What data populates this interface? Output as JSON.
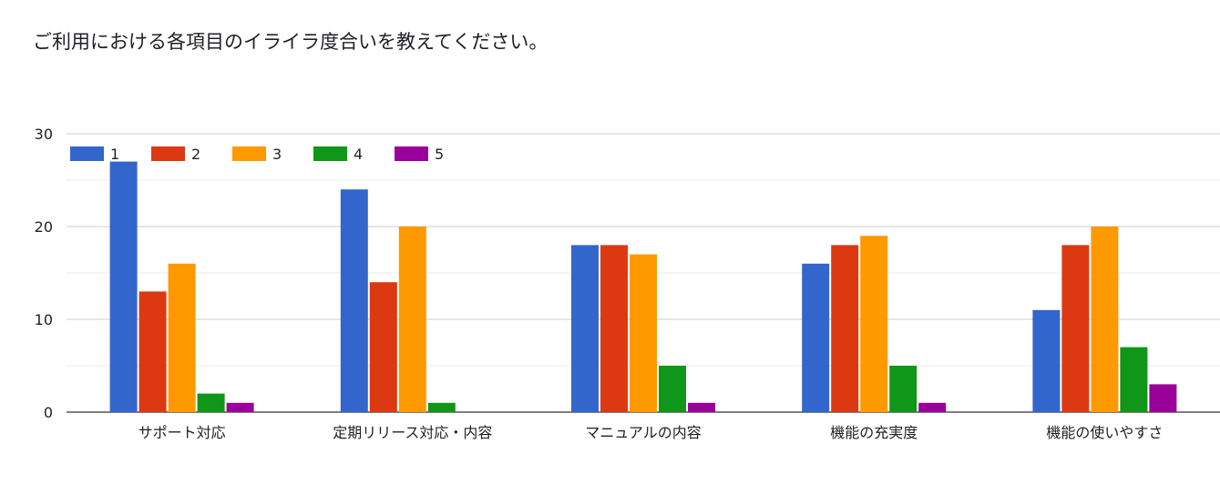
{
  "chart_data": {
    "type": "bar",
    "title": "ご利用における各項目のイライラ度合いを教えてください。",
    "xlabel": "",
    "ylabel": "",
    "ylim": [
      0,
      30
    ],
    "yticks": [
      0,
      10,
      20,
      30
    ],
    "grid": true,
    "legend": "top-left",
    "categories": [
      "サポート対応",
      "定期リリース対応・内容",
      "マニュアルの内容",
      "機能の充実度",
      "機能の使いやすさ"
    ],
    "series": [
      {
        "name": "1",
        "color": "#3366cc",
        "values": [
          27,
          24,
          18,
          16,
          11
        ]
      },
      {
        "name": "2",
        "color": "#dc3912",
        "values": [
          13,
          14,
          18,
          18,
          18
        ]
      },
      {
        "name": "3",
        "color": "#ff9900",
        "values": [
          16,
          20,
          17,
          19,
          20
        ]
      },
      {
        "name": "4",
        "color": "#109618",
        "values": [
          2,
          1,
          5,
          5,
          7
        ]
      },
      {
        "name": "5",
        "color": "#990099",
        "values": [
          1,
          0,
          1,
          1,
          3
        ]
      }
    ]
  }
}
